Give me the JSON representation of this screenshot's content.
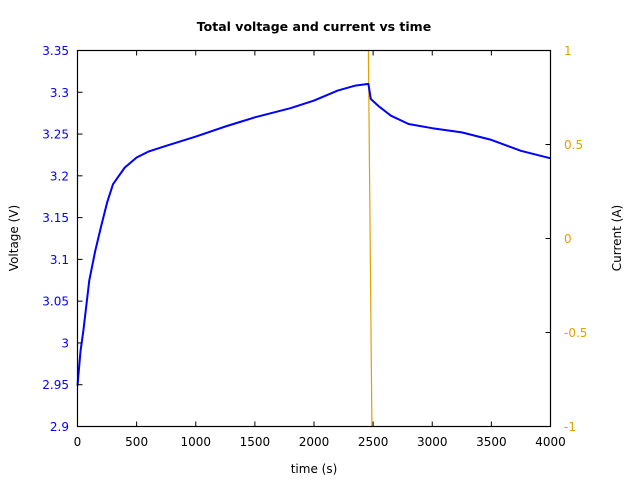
{
  "chart_data": {
    "type": "line",
    "title": "Total voltage and current vs time",
    "xlabel": "time (s)",
    "ylabel": "Voltage (V)",
    "y2label": "Current (A)",
    "xlim": [
      0,
      4000
    ],
    "ylim": [
      2.9,
      3.35
    ],
    "y2lim": [
      -1,
      1
    ],
    "x_ticks": [
      "0",
      "500",
      "1000",
      "1500",
      "2000",
      "2500",
      "3000",
      "3500",
      "4000"
    ],
    "y_ticks": [
      "2.9",
      "2.95",
      "3",
      "3.05",
      "3.1",
      "3.15",
      "3.2",
      "3.25",
      "3.3",
      "3.35"
    ],
    "y2_ticks": [
      "-1",
      "-0.5",
      "0",
      "0.5",
      "1"
    ],
    "grid": false,
    "legend": null,
    "series": [
      {
        "name": "Voltage",
        "axis": "left",
        "color": "#0000ff",
        "x": [
          0,
          25,
          50,
          100,
          150,
          200,
          250,
          300,
          400,
          500,
          600,
          750,
          1000,
          1250,
          1500,
          1800,
          2000,
          2200,
          2350,
          2460,
          2480,
          2550,
          2650,
          2800,
          3000,
          3250,
          3500,
          3750,
          4000
        ],
        "values": [
          2.949,
          2.99,
          3.015,
          3.075,
          3.11,
          3.14,
          3.168,
          3.19,
          3.21,
          3.222,
          3.229,
          3.236,
          3.247,
          3.259,
          3.27,
          3.281,
          3.29,
          3.302,
          3.308,
          3.31,
          3.292,
          3.283,
          3.272,
          3.262,
          3.257,
          3.252,
          3.243,
          3.23,
          3.221
        ]
      },
      {
        "name": "Current",
        "axis": "right",
        "color": "#e5a000",
        "x": [
          2460,
          2490
        ],
        "values": [
          1,
          -1
        ]
      }
    ]
  }
}
